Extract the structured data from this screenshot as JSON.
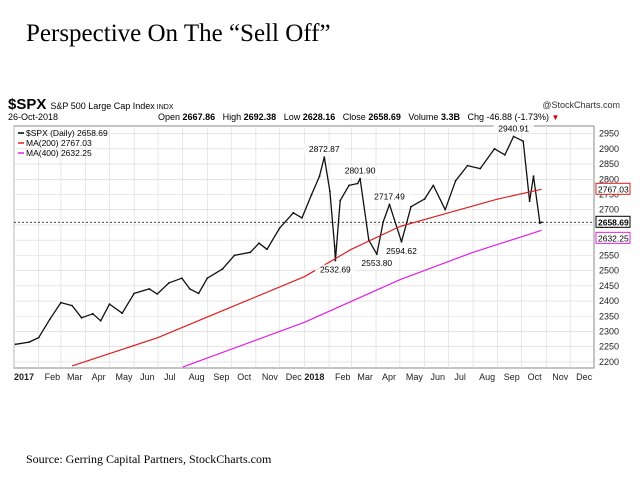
{
  "slide": {
    "title": "Perspective On The “Sell Off”",
    "source": "Source: Gerring Capital Partners, StockCharts.com"
  },
  "header": {
    "symbol": "$SPX",
    "description": "S&P 500 Large Cap Index",
    "exchange": "INDX",
    "brand": "@StockCharts.com",
    "date": "26-Oct-2018",
    "open_label": "Open",
    "open": "2667.86",
    "high_label": "High",
    "high": "2692.38",
    "low_label": "Low",
    "low": "2628.16",
    "close_label": "Close",
    "close": "2658.69",
    "volume_label": "Volume",
    "volume": "3.3B",
    "chg_label": "Chg",
    "chg": "-46.88 (-1.73%)"
  },
  "legend": [
    {
      "label": "$SPX (Daily) 2658.69",
      "color": "#000000"
    },
    {
      "label": "MA(200) 2767.03",
      "color": "#dd1f1f"
    },
    {
      "label": "MA(400) 2632.25",
      "color": "#e020e0"
    }
  ],
  "colors": {
    "price": "#111111",
    "down": "#cc0000",
    "ma200": "#dd1f1f",
    "ma400": "#e020e0",
    "grid": "#d8d8d8"
  },
  "chart_data": {
    "type": "line",
    "ylim": [
      2180,
      2975
    ],
    "yticks": [
      2200,
      2250,
      2300,
      2350,
      2400,
      2450,
      2500,
      2550,
      2600,
      2650,
      2700,
      2750,
      2800,
      2850,
      2900,
      2950
    ],
    "xlim": [
      "2017-01-01",
      "2018-12-31"
    ],
    "xticks": [
      {
        "label": "2017",
        "date": "2017-01-01",
        "bold": true
      },
      {
        "label": "Feb",
        "date": "2017-02-01"
      },
      {
        "label": "Mar",
        "date": "2017-03-01"
      },
      {
        "label": "Apr",
        "date": "2017-04-01"
      },
      {
        "label": "May",
        "date": "2017-05-01"
      },
      {
        "label": "Jun",
        "date": "2017-06-01"
      },
      {
        "label": "Jul",
        "date": "2017-07-01"
      },
      {
        "label": "Aug",
        "date": "2017-08-01"
      },
      {
        "label": "Sep",
        "date": "2017-09-01"
      },
      {
        "label": "Oct",
        "date": "2017-10-01"
      },
      {
        "label": "Nov",
        "date": "2017-11-01"
      },
      {
        "label": "Dec",
        "date": "2017-12-01"
      },
      {
        "label": "2018",
        "date": "2018-01-01",
        "bold": true
      },
      {
        "label": "Feb",
        "date": "2018-02-01"
      },
      {
        "label": "Mar",
        "date": "2018-03-01"
      },
      {
        "label": "Apr",
        "date": "2018-04-01"
      },
      {
        "label": "May",
        "date": "2018-05-01"
      },
      {
        "label": "Jun",
        "date": "2018-06-01"
      },
      {
        "label": "Jul",
        "date": "2018-07-01"
      },
      {
        "label": "Aug",
        "date": "2018-08-01"
      },
      {
        "label": "Sep",
        "date": "2018-09-01"
      },
      {
        "label": "Oct",
        "date": "2018-10-01"
      },
      {
        "label": "Nov",
        "date": "2018-11-01"
      },
      {
        "label": "Dec",
        "date": "2018-12-01"
      }
    ],
    "series": [
      {
        "name": "$SPX (Daily)",
        "points": [
          [
            "2017-01-03",
            2258
          ],
          [
            "2017-01-20",
            2265
          ],
          [
            "2017-02-01",
            2280
          ],
          [
            "2017-02-15",
            2340
          ],
          [
            "2017-03-01",
            2395
          ],
          [
            "2017-03-15",
            2385
          ],
          [
            "2017-03-27",
            2345
          ],
          [
            "2017-04-10",
            2358
          ],
          [
            "2017-04-20",
            2335
          ],
          [
            "2017-05-01",
            2390
          ],
          [
            "2017-05-17",
            2360
          ],
          [
            "2017-06-01",
            2425
          ],
          [
            "2017-06-20",
            2440
          ],
          [
            "2017-06-30",
            2423
          ],
          [
            "2017-07-15",
            2460
          ],
          [
            "2017-07-31",
            2475
          ],
          [
            "2017-08-10",
            2440
          ],
          [
            "2017-08-21",
            2425
          ],
          [
            "2017-09-01",
            2475
          ],
          [
            "2017-09-20",
            2505
          ],
          [
            "2017-10-05",
            2550
          ],
          [
            "2017-10-25",
            2560
          ],
          [
            "2017-11-05",
            2590
          ],
          [
            "2017-11-15",
            2570
          ],
          [
            "2017-12-01",
            2640
          ],
          [
            "2017-12-18",
            2690
          ],
          [
            "2017-12-29",
            2673
          ],
          [
            "2018-01-10",
            2750
          ],
          [
            "2018-01-20",
            2810
          ],
          [
            "2018-01-26",
            2872.87
          ],
          [
            "2018-02-02",
            2760
          ],
          [
            "2018-02-08",
            2581
          ],
          [
            "2018-02-09",
            2532.69
          ],
          [
            "2018-02-15",
            2730
          ],
          [
            "2018-02-26",
            2780
          ],
          [
            "2018-03-09",
            2786
          ],
          [
            "2018-03-12",
            2801.9
          ],
          [
            "2018-03-23",
            2600
          ],
          [
            "2018-04-02",
            2553.8
          ],
          [
            "2018-04-10",
            2660
          ],
          [
            "2018-04-18",
            2717.49
          ],
          [
            "2018-05-03",
            2594.62
          ],
          [
            "2018-05-15",
            2710
          ],
          [
            "2018-06-01",
            2735
          ],
          [
            "2018-06-12",
            2780
          ],
          [
            "2018-06-27",
            2700
          ],
          [
            "2018-07-10",
            2795
          ],
          [
            "2018-07-25",
            2845
          ],
          [
            "2018-08-10",
            2835
          ],
          [
            "2018-08-28",
            2900
          ],
          [
            "2018-09-10",
            2880
          ],
          [
            "2018-09-21",
            2940.91
          ],
          [
            "2018-10-03",
            2925
          ],
          [
            "2018-10-11",
            2728
          ],
          [
            "2018-10-16",
            2810
          ],
          [
            "2018-10-24",
            2656
          ],
          [
            "2018-10-26",
            2658.69
          ]
        ]
      },
      {
        "name": "MA(200)",
        "points": [
          [
            "2017-03-15",
            2187
          ],
          [
            "2017-07-01",
            2280
          ],
          [
            "2017-10-01",
            2380
          ],
          [
            "2018-01-01",
            2480
          ],
          [
            "2018-03-01",
            2570
          ],
          [
            "2018-05-01",
            2645
          ],
          [
            "2018-07-01",
            2690
          ],
          [
            "2018-09-01",
            2735
          ],
          [
            "2018-10-26",
            2767.03
          ]
        ]
      },
      {
        "name": "MA(400)",
        "points": [
          [
            "2017-08-01",
            2183
          ],
          [
            "2018-01-01",
            2330
          ],
          [
            "2018-05-01",
            2470
          ],
          [
            "2018-08-01",
            2560
          ],
          [
            "2018-10-26",
            2632.25
          ]
        ]
      }
    ],
    "annotations": [
      {
        "label": "2872.87",
        "date": "2018-01-26",
        "value": 2872.87,
        "pos": "above"
      },
      {
        "label": "2532.69",
        "date": "2018-02-09",
        "value": 2532.69,
        "pos": "below"
      },
      {
        "label": "2801.90",
        "date": "2018-03-12",
        "value": 2801.9,
        "pos": "above"
      },
      {
        "label": "2717.49",
        "date": "2018-04-18",
        "value": 2717.49,
        "pos": "above"
      },
      {
        "label": "2553.80",
        "date": "2018-04-02",
        "value": 2553.8,
        "pos": "below"
      },
      {
        "label": "2594.62",
        "date": "2018-05-03",
        "value": 2594.62,
        "pos": "below"
      },
      {
        "label": "2940.91",
        "date": "2018-09-21",
        "value": 2940.91,
        "pos": "above"
      }
    ],
    "right_labels": [
      {
        "label": "2767.03",
        "value": 2767.03,
        "color": "#dd1f1f"
      },
      {
        "label": "2658.69",
        "value": 2658.69,
        "color": "#000000"
      },
      {
        "label": "2632.25",
        "value": 2632.25,
        "color": "#e020e0"
      }
    ],
    "reference_line": 2658.69
  }
}
